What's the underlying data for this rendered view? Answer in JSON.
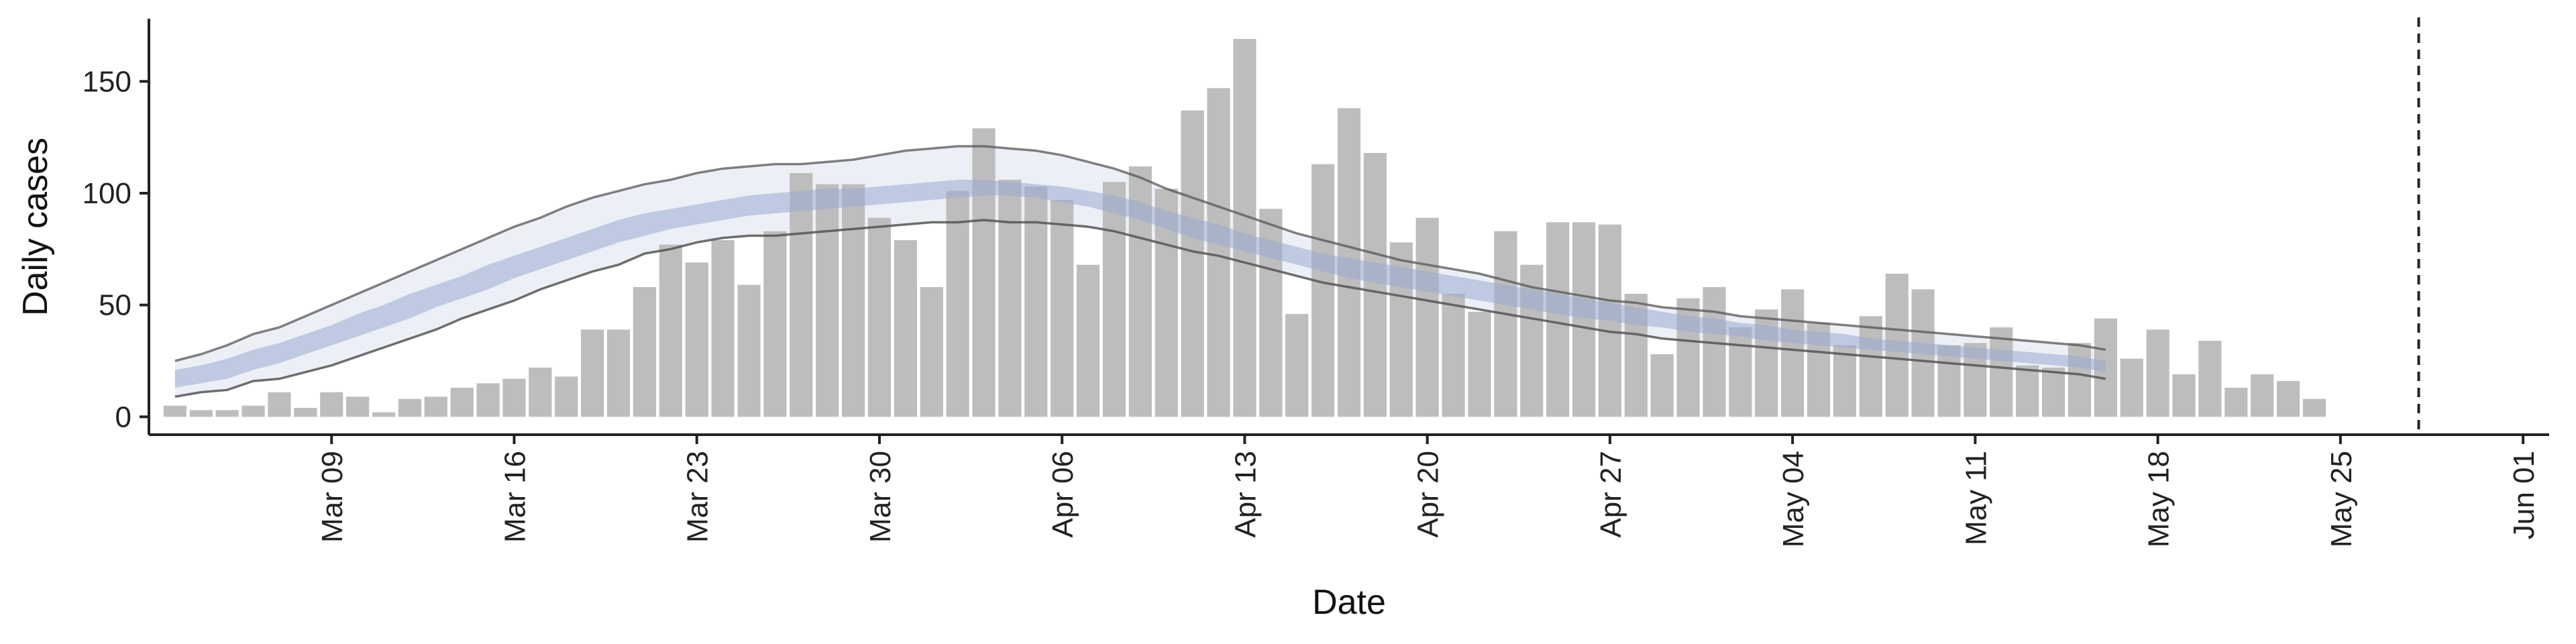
{
  "chart_data": {
    "type": "bar",
    "xlabel": "Date",
    "ylabel": "Daily cases",
    "ylim": [
      -8,
      178
    ],
    "yticks": [
      0,
      50,
      100,
      150
    ],
    "x_axis_start": "2020-03-02",
    "x_axis_end": "2020-06-02",
    "xticks": [
      "2020-03-09",
      "2020-03-16",
      "2020-03-23",
      "2020-03-30",
      "2020-04-06",
      "2020-04-13",
      "2020-04-20",
      "2020-04-27",
      "2020-05-04",
      "2020-05-11",
      "2020-05-18",
      "2020-05-25",
      "2020-06-01"
    ],
    "xtick_labels": [
      "Mar 09",
      "Mar 16",
      "Mar 23",
      "Mar 30",
      "Apr 06",
      "Apr 13",
      "Apr 20",
      "Apr 27",
      "May 04",
      "May 11",
      "May 18",
      "May 25",
      "Jun 01"
    ],
    "bars": {
      "start_date": "2020-03-03",
      "values": [
        5,
        3,
        3,
        5,
        11,
        4,
        11,
        9,
        2,
        8,
        9,
        13,
        15,
        17,
        22,
        18,
        39,
        39,
        58,
        77,
        69,
        79,
        59,
        83,
        109,
        104,
        104,
        89,
        79,
        58,
        101,
        129,
        106,
        103,
        97,
        68,
        105,
        112,
        102,
        137,
        147,
        169,
        93,
        46,
        113,
        138,
        118,
        78,
        89,
        55,
        47,
        83,
        68,
        87,
        87,
        86,
        55,
        28,
        53,
        58,
        40,
        48,
        57,
        42,
        32,
        45,
        64,
        57,
        32,
        33,
        40,
        23,
        22,
        33,
        44,
        26,
        39,
        19,
        34,
        13,
        19,
        16,
        8
      ],
      "color": "#bdbdbd"
    },
    "estimate": {
      "start_date": "2020-03-03",
      "median": [
        17,
        19,
        21,
        25,
        28,
        32,
        36,
        41,
        45,
        49,
        54,
        58,
        62,
        67,
        71,
        75,
        79,
        83,
        86,
        88,
        90,
        92,
        94,
        95,
        96,
        97,
        97,
        98,
        99,
        100,
        101,
        102,
        101,
        100,
        99,
        97,
        95,
        92,
        88,
        85,
        81,
        78,
        74,
        71,
        68,
        66,
        64,
        62,
        60,
        58,
        56,
        54,
        52,
        50,
        48,
        46,
        45,
        43,
        41,
        40,
        38,
        37,
        36,
        34,
        33,
        32,
        31,
        30,
        29,
        28,
        27,
        26,
        25,
        24,
        22
      ],
      "inner_low": [
        13,
        15,
        17,
        21,
        24,
        28,
        32,
        36,
        40,
        44,
        49,
        53,
        57,
        62,
        66,
        70,
        74,
        78,
        81,
        84,
        86,
        88,
        90,
        91,
        92,
        93,
        94,
        95,
        96,
        97,
        98,
        99,
        99,
        98,
        96,
        94,
        91,
        88,
        84,
        80,
        77,
        74,
        71,
        68,
        65,
        62,
        60,
        58,
        56,
        54,
        52,
        50,
        48,
        46,
        44,
        43,
        41,
        40,
        38,
        37,
        36,
        34,
        33,
        32,
        31,
        30,
        29,
        28,
        27,
        26,
        25,
        24,
        23,
        22,
        20
      ],
      "inner_high": [
        21,
        23,
        26,
        30,
        33,
        37,
        41,
        46,
        50,
        55,
        59,
        63,
        68,
        72,
        76,
        80,
        84,
        88,
        91,
        93,
        95,
        97,
        99,
        100,
        101,
        102,
        102,
        103,
        104,
        105,
        106,
        106,
        105,
        104,
        103,
        101,
        99,
        96,
        92,
        89,
        86,
        82,
        79,
        76,
        73,
        71,
        69,
        67,
        65,
        63,
        61,
        59,
        57,
        55,
        53,
        51,
        49,
        47,
        45,
        44,
        42,
        41,
        39,
        38,
        37,
        35,
        34,
        33,
        32,
        31,
        30,
        29,
        28,
        27,
        25
      ],
      "outer_low": [
        9,
        11,
        12,
        16,
        17,
        20,
        23,
        27,
        31,
        35,
        39,
        44,
        48,
        52,
        57,
        61,
        65,
        68,
        73,
        75,
        78,
        80,
        81,
        81,
        82,
        83,
        84,
        85,
        86,
        87,
        87,
        88,
        87,
        87,
        86,
        85,
        83,
        80,
        77,
        74,
        72,
        69,
        66,
        63,
        60,
        58,
        56,
        54,
        52,
        50,
        48,
        46,
        44,
        42,
        40,
        38,
        37,
        35,
        34,
        33,
        32,
        31,
        30,
        29,
        28,
        27,
        26,
        25,
        24,
        23,
        22,
        21,
        20,
        19,
        17
      ],
      "outer_high": [
        25,
        28,
        32,
        37,
        40,
        45,
        50,
        55,
        60,
        65,
        70,
        75,
        80,
        85,
        89,
        94,
        98,
        101,
        104,
        106,
        109,
        111,
        112,
        113,
        113,
        114,
        115,
        117,
        119,
        120,
        121,
        121,
        120,
        119,
        117,
        114,
        111,
        107,
        102,
        98,
        94,
        90,
        86,
        82,
        79,
        76,
        73,
        70,
        68,
        66,
        64,
        61,
        58,
        56,
        54,
        52,
        51,
        49,
        48,
        47,
        45,
        44,
        43,
        42,
        41,
        40,
        39,
        38,
        37,
        36,
        35,
        34,
        33,
        32,
        30
      ],
      "inner_color": "#9aa9cf",
      "outer_color": "#dde1ee",
      "line_color": "#555555"
    },
    "vline_date": "2020-05-28",
    "grid": false,
    "legend": "none"
  }
}
